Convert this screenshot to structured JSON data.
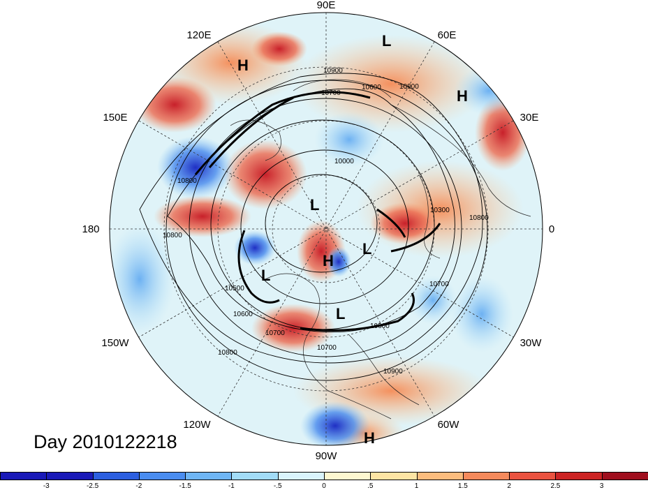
{
  "title": "Day 2010122218",
  "longitude_labels": {
    "north": "90E",
    "upper_left": "120E",
    "upper_right": "60E",
    "left_upper": "150E",
    "right_upper": "30E",
    "left": "180",
    "right": "0",
    "left_lower": "150W",
    "right_lower": "30W",
    "lower_left": "120W",
    "lower_right": "60W",
    "south": "90W"
  },
  "pressure_centers": [
    "H",
    "L",
    "H",
    "L",
    "L",
    "H",
    "L",
    "L",
    "H"
  ],
  "contour_labels": [
    "10900",
    "10700",
    "10600",
    "10900",
    "10800",
    "10000",
    "10800",
    "10300",
    "10800",
    "10700",
    "10500",
    "10600",
    "10800",
    "10700",
    "10900",
    "10600",
    "10700"
  ],
  "colorbar": {
    "tick_labels": [
      "-3",
      "-2.5",
      "-2",
      "-1.5",
      "-1",
      "-.5",
      "0",
      ".5",
      "1",
      "1.5",
      "2",
      "2.5",
      "3"
    ],
    "colors": [
      "#1a1ab8",
      "#2c5fe0",
      "#4a8df0",
      "#6fb6f5",
      "#a2dcf7",
      "#d9f3fb",
      "#fdf7d0",
      "#fde4a4",
      "#fbbc7e",
      "#f58a5c",
      "#ea5340",
      "#cc2424",
      "#a00f1e"
    ]
  }
}
